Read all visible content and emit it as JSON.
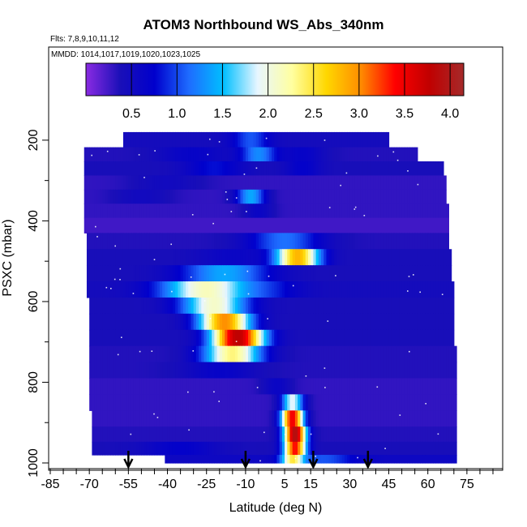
{
  "chart_data": {
    "type": "heatmap",
    "title": "ATOM3 Northbound WS_Abs_340nm",
    "subtitle_flights": "Flts: 7,8,9,10,11,12",
    "subtitle_dates": "MMDD: 1014,1017,1019,1020,1023,1025",
    "xlabel": "Latitude (deg N)",
    "ylabel": "PSXC (mbar)",
    "xlim": [
      -85,
      85
    ],
    "ylim": [
      1000,
      150
    ],
    "y_reversed": true,
    "x_ticks": [
      -85,
      -70,
      -55,
      -40,
      -25,
      -10,
      5,
      15,
      30,
      45,
      60,
      75
    ],
    "x_tick_labels": [
      "-85",
      "-70",
      "-55",
      "-40",
      "-25",
      "-10",
      "5",
      "15",
      "30",
      "45",
      "60",
      "75"
    ],
    "x_minor_step": 5,
    "y_ticks": [
      200,
      400,
      600,
      800,
      1000
    ],
    "y_tick_labels": [
      "200",
      "400",
      "600",
      "800",
      "1000"
    ],
    "colorbar": {
      "range": [
        0,
        4.15
      ],
      "ticks": [
        0.5,
        1.0,
        1.5,
        2.0,
        2.5,
        3.0,
        3.5,
        4.0
      ],
      "tick_labels": [
        "0.5",
        "1.0",
        "1.5",
        "2.0",
        "2.5",
        "3.0",
        "3.5",
        "4.0"
      ],
      "colors": [
        "#8a2be2",
        "#1a0fb8",
        "#0000cd",
        "#1e6cff",
        "#00bfff",
        "#e8f6ff",
        "#ffffa0",
        "#ffd700",
        "#ff8c00",
        "#ff0000",
        "#c00000",
        "#a52a2a"
      ]
    },
    "rows": [
      {
        "p": 200,
        "x0": -57,
        "x1": 45,
        "base": 0.45,
        "bumps": [
          [
            -8,
            5,
            0.6
          ]
        ]
      },
      {
        "p": 235,
        "x0": -72,
        "x1": 56,
        "base": 0.35,
        "bumps": [
          [
            -30,
            10,
            0.3
          ],
          [
            -5,
            5,
            0.9
          ],
          [
            12,
            6,
            0.3
          ]
        ]
      },
      {
        "p": 270,
        "x0": -72,
        "x1": 66,
        "base": 0.4,
        "bumps": [
          [
            -22,
            8,
            0.4
          ],
          [
            12,
            5,
            0.3
          ]
        ]
      },
      {
        "p": 305,
        "x0": -72,
        "x1": 67,
        "base": 0.3,
        "bumps": [
          [
            -40,
            10,
            0.2
          ]
        ]
      },
      {
        "p": 340,
        "x0": -72,
        "x1": 67,
        "base": 0.3,
        "bumps": [
          [
            -8,
            4,
            1.1
          ],
          [
            -50,
            8,
            0.2
          ]
        ]
      },
      {
        "p": 375,
        "x0": -72,
        "x1": 68,
        "base": 0.3,
        "bumps": [
          [
            -5,
            4,
            0.3
          ]
        ]
      },
      {
        "p": 410,
        "x0": -72,
        "x1": 68,
        "base": 0.25,
        "bumps": []
      },
      {
        "p": 450,
        "x0": -71,
        "x1": 68,
        "base": 0.35,
        "bumps": [
          [
            5,
            10,
            0.8
          ]
        ]
      },
      {
        "p": 490,
        "x0": -71,
        "x1": 69,
        "base": 0.4,
        "bumps": [
          [
            10,
            6,
            2.4
          ],
          [
            -15,
            10,
            0.2
          ]
        ]
      },
      {
        "p": 530,
        "x0": -71,
        "x1": 69,
        "base": 0.4,
        "bumps": [
          [
            -18,
            12,
            1.0
          ]
        ]
      },
      {
        "p": 570,
        "x0": -71,
        "x1": 70,
        "base": 0.45,
        "bumps": [
          [
            -25,
            12,
            1.7
          ],
          [
            0,
            8,
            0.3
          ]
        ]
      },
      {
        "p": 610,
        "x0": -70,
        "x1": 70,
        "base": 0.4,
        "bumps": [
          [
            -22,
            9,
            1.7
          ]
        ]
      },
      {
        "p": 650,
        "x0": -70,
        "x1": 70,
        "base": 0.4,
        "bumps": [
          [
            -18,
            7,
            2.6
          ]
        ]
      },
      {
        "p": 690,
        "x0": -70,
        "x1": 70,
        "base": 0.4,
        "bumps": [
          [
            -13,
            7,
            3.4
          ]
        ]
      },
      {
        "p": 730,
        "x0": -70,
        "x1": 71,
        "base": 0.35,
        "bumps": [
          [
            -15,
            8,
            2.0
          ]
        ]
      },
      {
        "p": 770,
        "x0": -70,
        "x1": 71,
        "base": 0.35,
        "bumps": [
          [
            -20,
            10,
            0.3
          ]
        ]
      },
      {
        "p": 810,
        "x0": -70,
        "x1": 71,
        "base": 0.3,
        "bumps": [
          [
            2,
            4,
            0.3
          ]
        ]
      },
      {
        "p": 850,
        "x0": -70,
        "x1": 71,
        "base": 0.3,
        "bumps": [
          [
            8,
            3,
            1.6
          ]
        ]
      },
      {
        "p": 890,
        "x0": -69,
        "x1": 71,
        "base": 0.3,
        "bumps": [
          [
            8,
            3,
            3.2
          ]
        ]
      },
      {
        "p": 930,
        "x0": -69,
        "x1": 71,
        "base": 0.35,
        "bumps": [
          [
            9,
            3,
            3.6
          ]
        ]
      },
      {
        "p": 965,
        "x0": -69,
        "x1": 71,
        "base": 0.4,
        "bumps": [
          [
            9,
            3,
            3.0
          ],
          [
            -35,
            10,
            0.3
          ]
        ]
      },
      {
        "p": 995,
        "x0": -41,
        "x1": 71,
        "base": 0.55,
        "bumps": [
          [
            8,
            3,
            1.8
          ],
          [
            20,
            8,
            0.5
          ]
        ]
      }
    ],
    "arrows_lat": [
      -55,
      -10,
      16,
      37
    ]
  }
}
